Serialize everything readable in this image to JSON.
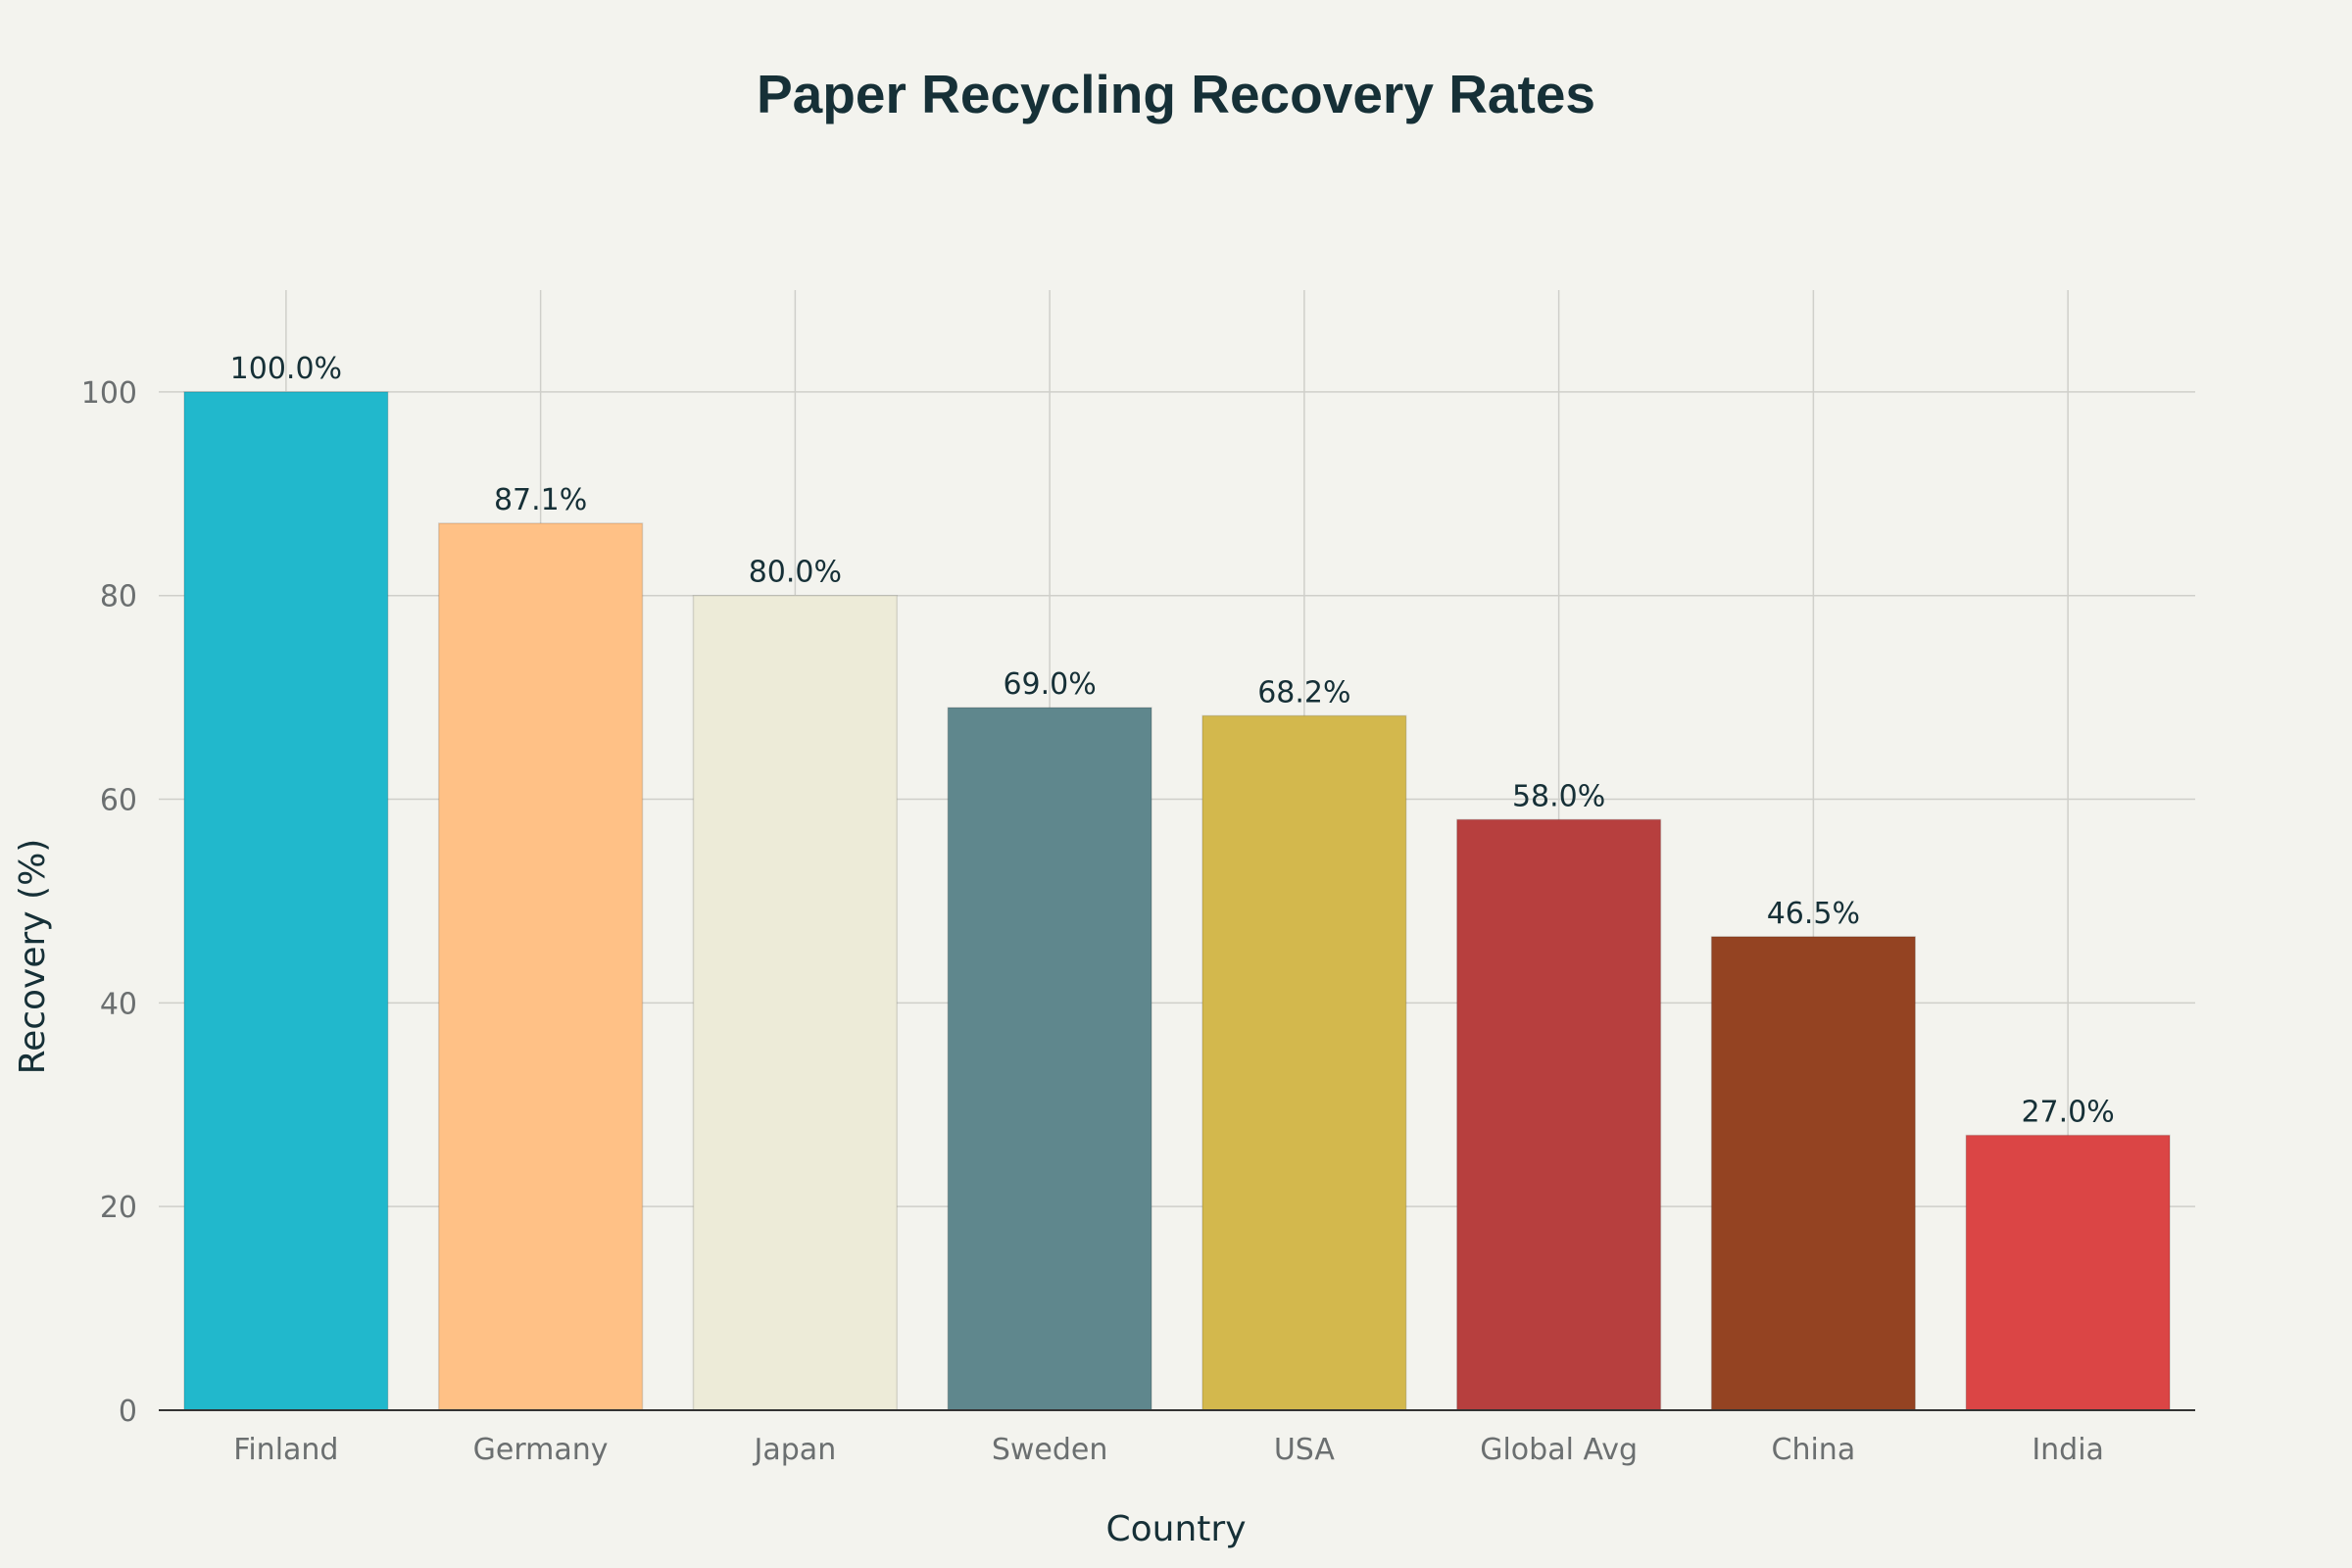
{
  "chart_data": {
    "type": "bar",
    "title": "Paper Recycling Recovery Rates",
    "xlabel": "Country",
    "ylabel": "Recovery (%)",
    "categories": [
      "Finland",
      "Germany",
      "Japan",
      "Sweden",
      "USA",
      "Global Avg",
      "China",
      "India"
    ],
    "values": [
      100.0,
      87.1,
      80.0,
      69.0,
      68.2,
      58.0,
      46.5,
      27.0
    ],
    "data_labels": [
      "100.0%",
      "87.1%",
      "80.0%",
      "69.0%",
      "68.2%",
      "58.0%",
      "46.5%",
      "27.0%"
    ],
    "bar_colors": [
      "#21b8cc",
      "#ffc186",
      "#edebd8",
      "#5f878d",
      "#d3b84d",
      "#b73f3e",
      "#944322",
      "#db4545"
    ],
    "ylim": [
      0,
      110
    ],
    "y_ticks": [
      0,
      20,
      40,
      60,
      80,
      100
    ],
    "y_tick_labels": [
      "0",
      "20",
      "40",
      "60",
      "80",
      "100"
    ],
    "grid": true,
    "legend": "none"
  }
}
